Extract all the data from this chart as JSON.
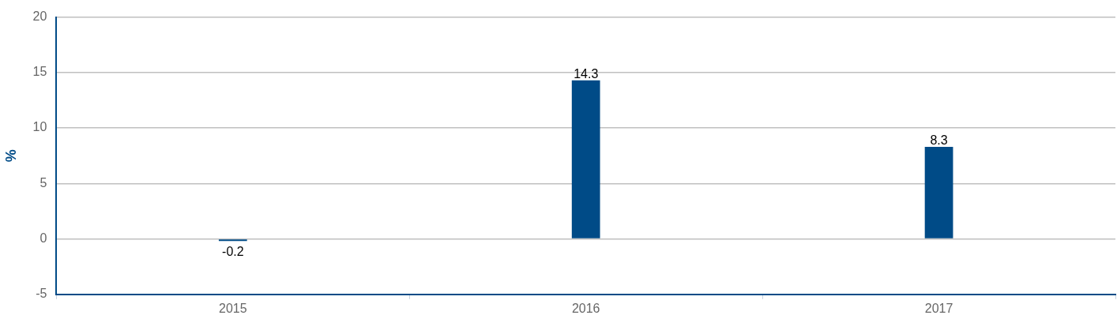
{
  "chart_data": {
    "type": "bar",
    "ylabel": "%",
    "categories": [
      "2015",
      "2016",
      "2017"
    ],
    "values": [
      -0.2,
      14.3,
      8.3
    ],
    "color": "#004b87",
    "ylim": [
      -5,
      20
    ],
    "yticks": [
      -5,
      0,
      5,
      10,
      15,
      20
    ],
    "grid": "y",
    "data_labels": true
  }
}
